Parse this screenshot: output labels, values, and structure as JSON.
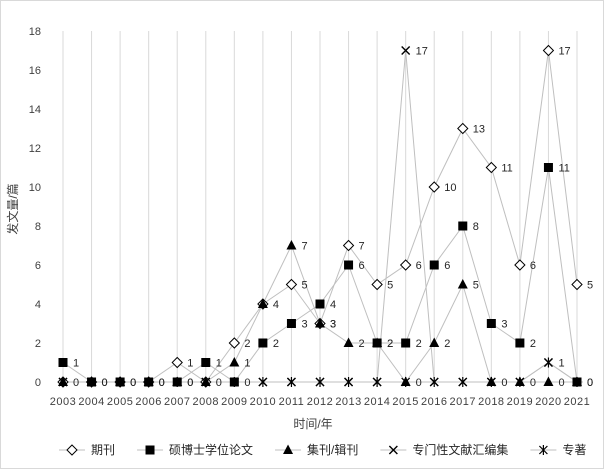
{
  "chart_data": {
    "type": "line",
    "title": "",
    "xlabel": "时间/年",
    "ylabel": "发文量/篇",
    "ylim": [
      0,
      18
    ],
    "yticks": [
      0,
      2,
      4,
      6,
      8,
      10,
      12,
      14,
      16,
      18
    ],
    "grid": "vertical",
    "legend_position": "bottom",
    "x": [
      "2003",
      "2004",
      "2005",
      "2006",
      "2007",
      "2008",
      "2009",
      "2010",
      "2011",
      "2012",
      "2013",
      "2014",
      "2015",
      "2016",
      "2017",
      "2018",
      "2019",
      "2020",
      "2021"
    ],
    "series": [
      {
        "name": "期刊",
        "marker": "diamond-open",
        "color": "#bfbfbf",
        "values": [
          0,
          0,
          0,
          0,
          1,
          0,
          2,
          4,
          5,
          3,
          7,
          5,
          6,
          10,
          13,
          11,
          6,
          17,
          5
        ]
      },
      {
        "name": "硕博士学位论文",
        "marker": "square",
        "color": "#bfbfbf",
        "values": [
          1,
          0,
          0,
          0,
          0,
          1,
          0,
          2,
          3,
          4,
          6,
          2,
          2,
          6,
          8,
          3,
          2,
          11,
          0
        ]
      },
      {
        "name": "集刊/辑刊",
        "marker": "triangle",
        "color": "#bfbfbf",
        "values": [
          0,
          0,
          0,
          0,
          0,
          0,
          1,
          4,
          7,
          3,
          2,
          2,
          0,
          2,
          5,
          0,
          0,
          0,
          0
        ]
      },
      {
        "name": "专门性文献汇编集",
        "marker": "x",
        "color": "#bfbfbf",
        "values": [
          0,
          0,
          0,
          0,
          0,
          0,
          0,
          0,
          0,
          0,
          0,
          0,
          17,
          0,
          0,
          0,
          0,
          1,
          0
        ]
      },
      {
        "name": "专著",
        "marker": "asterisk",
        "color": "#bfbfbf",
        "values": [
          0,
          0,
          0,
          0,
          0,
          0,
          0,
          0,
          0,
          0,
          0,
          0,
          0,
          0,
          0,
          0,
          0,
          1,
          0
        ]
      }
    ],
    "data_labels": [
      {
        "series": 0,
        "points": [
          [
            4,
            "1"
          ],
          [
            6,
            "2"
          ],
          [
            7,
            "4"
          ],
          [
            8,
            "5"
          ],
          [
            9,
            "3"
          ],
          [
            10,
            "7"
          ],
          [
            11,
            "5"
          ],
          [
            12,
            "6"
          ],
          [
            13,
            "10"
          ],
          [
            14,
            "13"
          ],
          [
            15,
            "11"
          ],
          [
            16,
            "6"
          ],
          [
            17,
            "17"
          ],
          [
            18,
            "5"
          ]
        ]
      },
      {
        "series": 1,
        "points": [
          [
            0,
            "1"
          ],
          [
            1,
            "0"
          ],
          [
            2,
            "0"
          ],
          [
            3,
            "0"
          ],
          [
            4,
            "0"
          ],
          [
            5,
            "1"
          ],
          [
            6,
            "0"
          ],
          [
            7,
            "2"
          ],
          [
            8,
            "3"
          ],
          [
            9,
            "4"
          ],
          [
            10,
            "6"
          ],
          [
            11,
            "2"
          ],
          [
            12,
            "2"
          ],
          [
            13,
            "6"
          ],
          [
            14,
            "8"
          ],
          [
            15,
            "3"
          ],
          [
            16,
            "2"
          ],
          [
            17,
            "11"
          ],
          [
            18,
            "0"
          ]
        ]
      },
      {
        "series": 2,
        "points": [
          [
            0,
            "0"
          ],
          [
            1,
            "0"
          ],
          [
            2,
            "0"
          ],
          [
            3,
            "0"
          ],
          [
            4,
            "0"
          ],
          [
            5,
            "0"
          ],
          [
            6,
            "1"
          ],
          [
            8,
            "7"
          ],
          [
            9,
            "3"
          ],
          [
            10,
            "2"
          ],
          [
            11,
            "2"
          ],
          [
            12,
            "0"
          ],
          [
            13,
            "2"
          ],
          [
            14,
            "5"
          ],
          [
            15,
            "0"
          ],
          [
            16,
            "0"
          ],
          [
            17,
            "0"
          ],
          [
            18,
            "0"
          ]
        ]
      },
      {
        "series": 3,
        "points": [
          [
            12,
            "17"
          ],
          [
            17,
            "1"
          ]
        ]
      }
    ]
  }
}
